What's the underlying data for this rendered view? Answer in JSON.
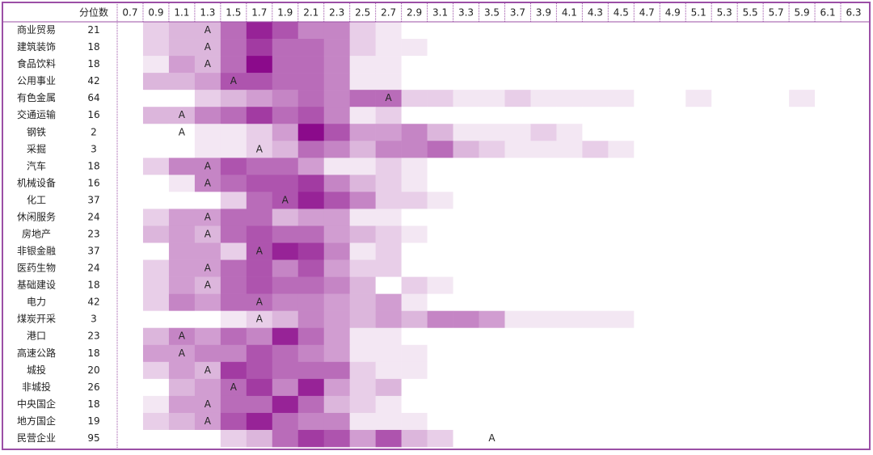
{
  "chart_data": {
    "type": "heatmap",
    "color": "#8b0a8b",
    "header": "分位数",
    "columns": [
      "0.7",
      "0.9",
      "1.1",
      "1.3",
      "1.5",
      "1.7",
      "1.9",
      "2.1",
      "2.3",
      "2.5",
      "2.7",
      "2.9",
      "3.1",
      "3.3",
      "3.5",
      "3.7",
      "3.9",
      "4.1",
      "4.3",
      "4.5",
      "4.7",
      "4.9",
      "5.1",
      "5.3",
      "5.5",
      "5.7",
      "5.9",
      "6.1",
      "6.3"
    ],
    "rows": [
      "商业贸易",
      "建筑装饰",
      "食品饮料",
      "公用事业",
      "有色金属",
      "交通运输",
      "钢铁",
      "采掘",
      "汽车",
      "机械设备",
      "化工",
      "休闲服务",
      "房地产",
      "非银金融",
      "医药生物",
      "基础建设",
      "电力",
      "煤炭开采",
      "港口",
      "高速公路",
      "城投",
      "非城投",
      "中央国企",
      "地方国企",
      "民营企业"
    ],
    "counts": [
      21,
      18,
      18,
      42,
      64,
      16,
      2,
      3,
      18,
      16,
      37,
      24,
      23,
      37,
      24,
      18,
      42,
      3,
      23,
      18,
      20,
      26,
      18,
      19,
      95
    ],
    "marker_label": "A",
    "markers": [
      "1.3",
      "1.3",
      "1.3",
      "1.5",
      "2.7",
      "1.1",
      "1.1",
      "1.7",
      "1.3",
      "1.3",
      "1.9",
      "1.3",
      "1.3",
      "1.7",
      "1.3",
      "1.3",
      "1.7",
      "1.7",
      "1.1",
      "1.1",
      "1.3",
      "1.5",
      "1.3",
      "1.3",
      "3.5"
    ],
    "values": [
      [
        0,
        2,
        3,
        3,
        6,
        9,
        7,
        5,
        5,
        2,
        1,
        0,
        0,
        0,
        0,
        0,
        0,
        0,
        0,
        0,
        0,
        0,
        0,
        0,
        0,
        0,
        0,
        0,
        0
      ],
      [
        0,
        2,
        3,
        3,
        6,
        8,
        6,
        6,
        5,
        2,
        1,
        1,
        0,
        0,
        0,
        0,
        0,
        0,
        0,
        0,
        0,
        0,
        0,
        0,
        0,
        0,
        0,
        0,
        0
      ],
      [
        0,
        1,
        4,
        3,
        6,
        10,
        6,
        6,
        5,
        1,
        1,
        0,
        0,
        0,
        0,
        0,
        0,
        0,
        0,
        0,
        0,
        0,
        0,
        0,
        0,
        0,
        0,
        0,
        0
      ],
      [
        0,
        3,
        3,
        4,
        7,
        7,
        6,
        6,
        5,
        1,
        1,
        0,
        0,
        0,
        0,
        0,
        0,
        0,
        0,
        0,
        0,
        0,
        0,
        0,
        0,
        0,
        0,
        0,
        0
      ],
      [
        0,
        0,
        0,
        2,
        3,
        4,
        5,
        6,
        5,
        6,
        6,
        2,
        2,
        1,
        1,
        2,
        1,
        1,
        1,
        1,
        0,
        0,
        1,
        0,
        0,
        0,
        1,
        0,
        0
      ],
      [
        0,
        3,
        3,
        5,
        6,
        8,
        6,
        7,
        5,
        1,
        2,
        0,
        0,
        0,
        0,
        0,
        0,
        0,
        0,
        0,
        0,
        0,
        0,
        0,
        0,
        0,
        0,
        0,
        0
      ],
      [
        0,
        0,
        0,
        1,
        1,
        2,
        4,
        10,
        7,
        4,
        4,
        5,
        3,
        1,
        1,
        1,
        2,
        1,
        0,
        0,
        0,
        0,
        0,
        0,
        0,
        0,
        0,
        0,
        0
      ],
      [
        0,
        0,
        0,
        1,
        1,
        2,
        3,
        6,
        5,
        3,
        5,
        5,
        6,
        3,
        2,
        1,
        1,
        1,
        2,
        1,
        0,
        0,
        0,
        0,
        0,
        0,
        0,
        0,
        0
      ],
      [
        0,
        2,
        5,
        5,
        7,
        6,
        6,
        4,
        1,
        1,
        2,
        1,
        0,
        0,
        0,
        0,
        0,
        0,
        0,
        0,
        0,
        0,
        0,
        0,
        0,
        0,
        0,
        0,
        0
      ],
      [
        0,
        0,
        1,
        5,
        6,
        7,
        7,
        8,
        5,
        3,
        2,
        1,
        0,
        0,
        0,
        0,
        0,
        0,
        0,
        0,
        0,
        0,
        0,
        0,
        0,
        0,
        0,
        0,
        0
      ],
      [
        0,
        0,
        0,
        0,
        2,
        6,
        7,
        9,
        7,
        5,
        2,
        2,
        1,
        0,
        0,
        0,
        0,
        0,
        0,
        0,
        0,
        0,
        0,
        0,
        0,
        0,
        0,
        0,
        0
      ],
      [
        0,
        2,
        4,
        4,
        6,
        6,
        3,
        4,
        4,
        1,
        1,
        0,
        0,
        0,
        0,
        0,
        0,
        0,
        0,
        0,
        0,
        0,
        0,
        0,
        0,
        0,
        0,
        0,
        0
      ],
      [
        0,
        3,
        4,
        3,
        6,
        7,
        6,
        6,
        4,
        3,
        2,
        1,
        0,
        0,
        0,
        0,
        0,
        0,
        0,
        0,
        0,
        0,
        0,
        0,
        0,
        0,
        0,
        0,
        0
      ],
      [
        0,
        0,
        4,
        4,
        2,
        7,
        9,
        8,
        5,
        1,
        2,
        0,
        0,
        0,
        0,
        0,
        0,
        0,
        0,
        0,
        0,
        0,
        0,
        0,
        0,
        0,
        0,
        0,
        0
      ],
      [
        0,
        2,
        4,
        4,
        6,
        7,
        5,
        7,
        4,
        2,
        2,
        0,
        0,
        0,
        0,
        0,
        0,
        0,
        0,
        0,
        0,
        0,
        0,
        0,
        0,
        0,
        0,
        0,
        0
      ],
      [
        0,
        2,
        4,
        3,
        6,
        7,
        6,
        6,
        5,
        3,
        0,
        2,
        1,
        0,
        0,
        0,
        0,
        0,
        0,
        0,
        0,
        0,
        0,
        0,
        0,
        0,
        0,
        0,
        0
      ],
      [
        0,
        2,
        5,
        4,
        6,
        6,
        5,
        5,
        4,
        3,
        4,
        1,
        0,
        0,
        0,
        0,
        0,
        0,
        0,
        0,
        0,
        0,
        0,
        0,
        0,
        0,
        0,
        0,
        0
      ],
      [
        0,
        0,
        0,
        0,
        1,
        2,
        3,
        5,
        4,
        3,
        4,
        3,
        5,
        5,
        4,
        1,
        1,
        1,
        1,
        1,
        0,
        0,
        0,
        0,
        0,
        0,
        0,
        0,
        0
      ],
      [
        0,
        3,
        5,
        4,
        6,
        5,
        9,
        6,
        4,
        1,
        1,
        0,
        0,
        0,
        0,
        0,
        0,
        0,
        0,
        0,
        0,
        0,
        0,
        0,
        0,
        0,
        0,
        0,
        0
      ],
      [
        0,
        4,
        4,
        5,
        5,
        7,
        6,
        5,
        4,
        1,
        1,
        1,
        0,
        0,
        0,
        0,
        0,
        0,
        0,
        0,
        0,
        0,
        0,
        0,
        0,
        0,
        0,
        0,
        0
      ],
      [
        0,
        2,
        4,
        3,
        8,
        7,
        6,
        6,
        6,
        2,
        1,
        1,
        0,
        0,
        0,
        0,
        0,
        0,
        0,
        0,
        0,
        0,
        0,
        0,
        0,
        0,
        0,
        0,
        0
      ],
      [
        0,
        0,
        3,
        4,
        6,
        8,
        5,
        9,
        4,
        2,
        3,
        0,
        0,
        0,
        0,
        0,
        0,
        0,
        0,
        0,
        0,
        0,
        0,
        0,
        0,
        0,
        0,
        0,
        0
      ],
      [
        0,
        1,
        4,
        4,
        6,
        6,
        9,
        6,
        3,
        2,
        1,
        0,
        0,
        0,
        0,
        0,
        0,
        0,
        0,
        0,
        0,
        0,
        0,
        0,
        0,
        0,
        0,
        0,
        0
      ],
      [
        0,
        2,
        3,
        4,
        7,
        9,
        6,
        5,
        5,
        1,
        1,
        1,
        0,
        0,
        0,
        0,
        0,
        0,
        0,
        0,
        0,
        0,
        0,
        0,
        0,
        0,
        0,
        0,
        0
      ],
      [
        0,
        0,
        0,
        0,
        2,
        3,
        6,
        8,
        7,
        4,
        7,
        3,
        2,
        0,
        0,
        0,
        0,
        0,
        0,
        0,
        0,
        0,
        0,
        0,
        0,
        0,
        0,
        0,
        0
      ]
    ]
  }
}
